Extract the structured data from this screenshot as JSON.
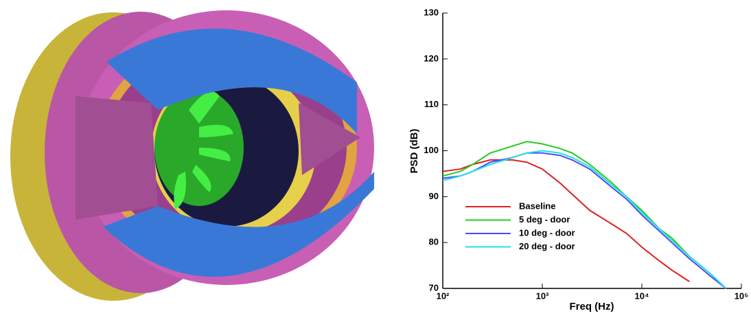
{
  "chart_data": {
    "type": "line",
    "x_label": "Freq (Hz)",
    "y_label": "PSD (dB)",
    "xscale": "log",
    "xlim": [
      100,
      100000
    ],
    "xticks": [
      {
        "value": 100,
        "label": "10²"
      },
      {
        "value": 1000,
        "label": "10³"
      },
      {
        "value": 10000,
        "label": "10⁴"
      },
      {
        "value": 100000,
        "label": "10⁵"
      }
    ],
    "ylim": [
      70,
      130
    ],
    "yticks": [
      70,
      80,
      90,
      100,
      110,
      120,
      130
    ],
    "legend": "lower left",
    "x": [
      100,
      150,
      200,
      300,
      500,
      700,
      1000,
      1500,
      2000,
      3000,
      5000,
      7000,
      10000,
      15000,
      20000,
      30000,
      50000,
      70000
    ],
    "series": [
      {
        "name": "Baseline",
        "color": "#e02020",
        "values": [
          95.5,
          96,
          97,
          98,
          98,
          97.5,
          96,
          93,
          90.5,
          87,
          84,
          82,
          79,
          76,
          74,
          71.5,
          null,
          null
        ]
      },
      {
        "name": "5 deg - door",
        "color": "#22cc22",
        "values": [
          94.5,
          95.5,
          97,
          99.5,
          101,
          102,
          101.5,
          100.5,
          99.5,
          97,
          93,
          90,
          87,
          83,
          81,
          77,
          73,
          70
        ]
      },
      {
        "name": "10 deg - door",
        "color": "#4a4aff",
        "values": [
          94,
          94.5,
          95.5,
          97.5,
          98.5,
          99.5,
          99.5,
          99,
          98,
          96,
          92,
          89.5,
          86,
          82.5,
          80,
          76.5,
          72.5,
          70
        ]
      },
      {
        "name": "20 deg - door",
        "color": "#22e0e0",
        "values": [
          93.5,
          94.5,
          95.5,
          97,
          98.5,
          99.5,
          100,
          99.5,
          98.5,
          96.5,
          92.5,
          90,
          86.5,
          83,
          80.5,
          77,
          73,
          70
        ]
      }
    ]
  }
}
